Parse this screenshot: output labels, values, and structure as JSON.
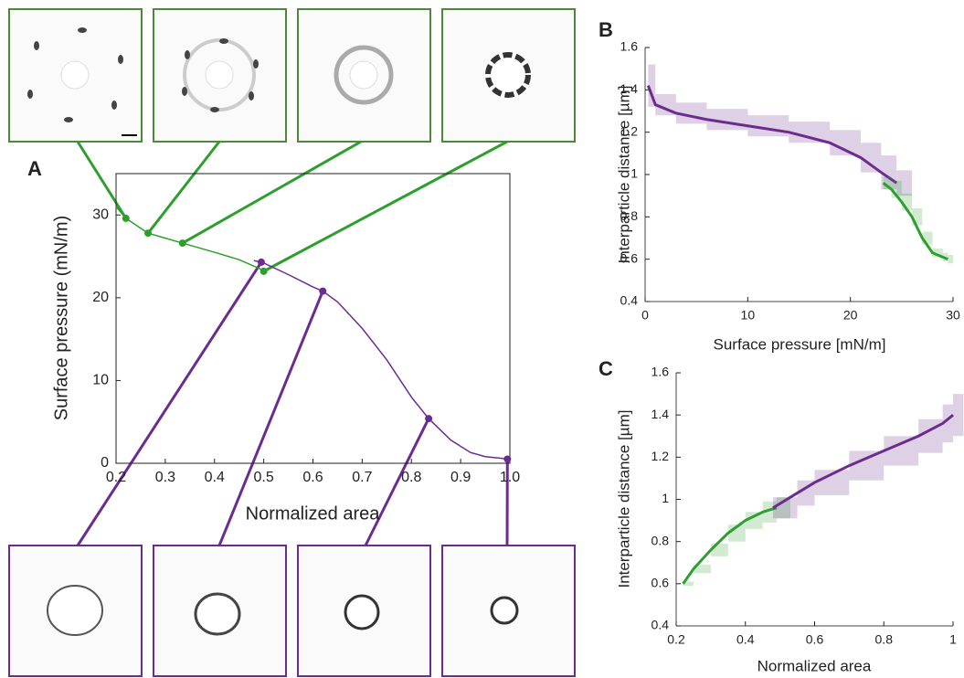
{
  "chart_data": [
    {
      "type": "line",
      "label": "A",
      "xlabel": "Normalized area",
      "ylabel": "Surface pressure (mN/m)",
      "xlim": [
        0.2,
        1.0
      ],
      "xticks": [
        0.2,
        0.3,
        0.4,
        0.5,
        0.6,
        0.7,
        0.8,
        0.9,
        {
          "value": 1,
          "label": "1.0"
        }
      ],
      "ylim": [
        0,
        35
      ],
      "yticks": [
        0,
        10,
        20,
        30
      ],
      "series": [
        {
          "color": "#2e9e2e",
          "x": [
            0.2,
            0.22,
            0.265,
            0.3,
            0.335,
            0.4,
            0.45,
            0.5
          ],
          "values": [
            31,
            29.6,
            27.8,
            27.2,
            26.6,
            25.5,
            24.6,
            23.3
          ]
        },
        {
          "color": "#6b2c8f",
          "x": [
            0.48,
            0.5,
            0.55,
            0.6,
            0.62,
            0.65,
            0.7,
            0.75,
            0.8,
            0.835,
            0.88,
            0.92,
            0.95,
            1.0
          ],
          "values": [
            24.5,
            24.2,
            22.8,
            21.3,
            20.8,
            19.5,
            16.3,
            12.5,
            8.0,
            5.4,
            2.8,
            1.3,
            0.8,
            0.5
          ]
        }
      ],
      "markers": [
        {
          "color": "#2e9e2e",
          "x": [
            0.22,
            0.265,
            0.335,
            0.5
          ],
          "values": [
            29.6,
            27.8,
            26.6,
            23.2
          ]
        },
        {
          "color": "#6b2c8f",
          "x": [
            0.495,
            0.62,
            0.835,
            0.995
          ],
          "values": [
            24.3,
            20.8,
            5.4,
            0.5
          ]
        }
      ]
    },
    {
      "type": "line",
      "label": "B",
      "xlabel": "Surface pressure  [mN/m]",
      "ylabel": "Interparticle distance [µm]",
      "xlim": [
        0,
        30
      ],
      "xticks": [
        0,
        10,
        20,
        30
      ],
      "ylim": [
        0.4,
        1.6
      ],
      "yticks": [
        0.4,
        0.6,
        0.8,
        1,
        1.2,
        1.4,
        1.6
      ],
      "series": [
        {
          "color": "#6b2c8f",
          "x": [
            0.3,
            1,
            3,
            6,
            10,
            14,
            18,
            21,
            23,
            24.5
          ],
          "values": [
            1.42,
            1.33,
            1.29,
            1.26,
            1.23,
            1.2,
            1.15,
            1.08,
            1.01,
            0.96
          ],
          "band": [
            0.1,
            0.05,
            0.05,
            0.05,
            0.05,
            0.05,
            0.06,
            0.07,
            0.08,
            0.06
          ]
        },
        {
          "color": "#2e9e2e",
          "x": [
            23.2,
            24,
            25,
            26,
            27,
            28,
            29,
            29.5
          ],
          "values": [
            0.96,
            0.93,
            0.87,
            0.8,
            0.7,
            0.63,
            0.61,
            0.6
          ],
          "band": [
            0.03,
            0.04,
            0.04,
            0.04,
            0.03,
            0.02,
            0.02,
            0.02
          ]
        }
      ]
    },
    {
      "type": "line",
      "label": "C",
      "xlabel": "Normalized area",
      "ylabel": "Interparticle distance [µm]",
      "xlim": [
        0.2,
        1
      ],
      "xticks": [
        0.2,
        0.4,
        0.6,
        0.8,
        1
      ],
      "ylim": [
        0.4,
        1.6
      ],
      "yticks": [
        0.4,
        0.6,
        0.8,
        1,
        1.2,
        1.4,
        1.6
      ],
      "series": [
        {
          "color": "#2e9e2e",
          "x": [
            0.22,
            0.25,
            0.3,
            0.35,
            0.4,
            0.45,
            0.49
          ],
          "values": [
            0.6,
            0.67,
            0.76,
            0.84,
            0.9,
            0.94,
            0.96
          ],
          "band": [
            0.01,
            0.02,
            0.03,
            0.04,
            0.04,
            0.05,
            0.05
          ]
        },
        {
          "color": "#6b2c8f",
          "x": [
            0.48,
            0.55,
            0.6,
            0.7,
            0.8,
            0.9,
            0.97,
            1.0
          ],
          "values": [
            0.96,
            1.03,
            1.08,
            1.16,
            1.23,
            1.3,
            1.36,
            1.4
          ],
          "band": [
            0.05,
            0.06,
            0.06,
            0.07,
            0.07,
            0.08,
            0.09,
            0.1
          ]
        }
      ]
    }
  ]
}
